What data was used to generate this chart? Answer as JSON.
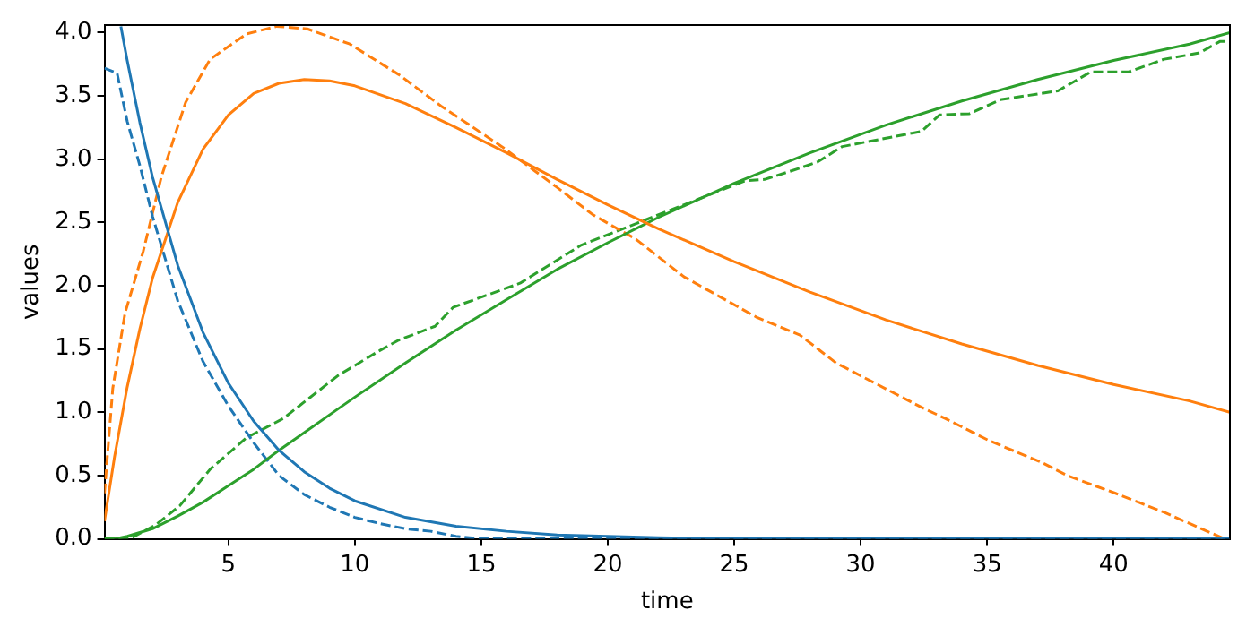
{
  "chart_data": {
    "type": "line",
    "xlabel": "time",
    "ylabel": "values",
    "xlim": [
      0.1,
      44.6
    ],
    "ylim": [
      0,
      4.06
    ],
    "xticks": [
      5,
      10,
      15,
      20,
      25,
      30,
      35,
      40
    ],
    "yticks": [
      {
        "value": 0,
        "label": "0.0"
      },
      {
        "value": 0.5,
        "label": "0.5"
      },
      {
        "value": 1,
        "label": "1.0"
      },
      {
        "value": 1.5,
        "label": "1.5"
      },
      {
        "value": 2,
        "label": "2.0"
      },
      {
        "value": 2.5,
        "label": "2.5"
      },
      {
        "value": 3,
        "label": "3.0"
      },
      {
        "value": 3.5,
        "label": "3.5"
      },
      {
        "value": 4,
        "label": "4.0"
      }
    ],
    "grid": false,
    "legend": false,
    "marker": "none",
    "series": [
      {
        "color": "#1f77b4",
        "line_style": "solid",
        "x": [
          0.75,
          1,
          1.5,
          2,
          3,
          4,
          5,
          6,
          7,
          8,
          9,
          10,
          12,
          14,
          16,
          18,
          20,
          22,
          25,
          30,
          35,
          40,
          44.6
        ],
        "values": [
          4.05,
          3.78,
          3.29,
          2.86,
          2.16,
          1.63,
          1.23,
          0.93,
          0.7,
          0.53,
          0.4,
          0.3,
          0.17,
          0.1,
          0.06,
          0.03,
          0.02,
          0.01,
          0,
          0,
          0,
          0,
          0
        ]
      },
      {
        "color": "#ff7f0e",
        "line_style": "solid",
        "x": [
          0.1,
          0.5,
          1,
          1.5,
          2,
          3,
          4,
          5,
          6,
          7,
          8,
          9,
          10,
          12,
          14,
          16,
          18,
          20,
          22,
          25,
          28,
          31,
          34,
          37,
          40,
          43,
          44.6
        ],
        "values": [
          0.14,
          0.65,
          1.2,
          1.66,
          2.06,
          2.66,
          3.08,
          3.35,
          3.52,
          3.6,
          3.63,
          3.62,
          3.58,
          3.44,
          3.25,
          3.05,
          2.84,
          2.64,
          2.45,
          2.19,
          1.95,
          1.73,
          1.54,
          1.37,
          1.22,
          1.09,
          1.0
        ]
      },
      {
        "color": "#2ca02c",
        "line_style": "solid",
        "x": [
          0.1,
          0.5,
          1,
          1.5,
          2,
          3,
          4,
          5,
          6,
          7,
          8,
          9,
          10,
          12,
          14,
          16,
          18,
          20,
          22,
          25,
          28,
          31,
          34,
          37,
          40,
          43,
          44.6
        ],
        "values": [
          0,
          0,
          0.02,
          0.05,
          0.08,
          0.18,
          0.29,
          0.42,
          0.55,
          0.7,
          0.84,
          0.98,
          1.12,
          1.39,
          1.65,
          1.89,
          2.13,
          2.34,
          2.54,
          2.81,
          3.05,
          3.27,
          3.46,
          3.63,
          3.78,
          3.91,
          4.0
        ]
      },
      {
        "color": "#1f77b4",
        "line_style": "dashed",
        "x": [
          0.1,
          0.6,
          1,
          1.5,
          2,
          3,
          4,
          5,
          6,
          7,
          8,
          9,
          10,
          11,
          12,
          13,
          14,
          15,
          20,
          30,
          44.6
        ],
        "values": [
          3.72,
          3.68,
          3.3,
          2.95,
          2.55,
          1.88,
          1.4,
          1.05,
          0.76,
          0.5,
          0.35,
          0.25,
          0.17,
          0.12,
          0.08,
          0.06,
          0.02,
          0,
          0,
          0,
          0
        ]
      },
      {
        "color": "#ff7f0e",
        "line_style": "dashed",
        "x": [
          0.1,
          0.43,
          0.91,
          1.63,
          2.35,
          3.31,
          4.28,
          5.72,
          6.92,
          8.12,
          9.8,
          11.0,
          11.73,
          13.41,
          15.81,
          17.98,
          19.42,
          21.1,
          23.02,
          25.9,
          27.6,
          29.03,
          30.47,
          32.4,
          33.36,
          35.04,
          37.2,
          38.17,
          40.08,
          42.0,
          43.93,
          44.4
        ],
        "values": [
          0.36,
          1.19,
          1.78,
          2.27,
          2.86,
          3.45,
          3.79,
          3.99,
          4.05,
          4.03,
          3.91,
          3.76,
          3.67,
          3.42,
          3.1,
          2.78,
          2.56,
          2.37,
          2.07,
          1.75,
          1.61,
          1.39,
          1.24,
          1.04,
          0.95,
          0.78,
          0.6,
          0.5,
          0.36,
          0.21,
          0.04,
          0
        ]
      },
      {
        "color": "#2ca02c",
        "line_style": "dashed",
        "x": [
          0.1,
          1.1,
          2.12,
          3.07,
          4.28,
          5.72,
          7.16,
          9.33,
          11.0,
          11.73,
          13.17,
          13.89,
          16.53,
          18.94,
          21.1,
          23.02,
          25.43,
          26.2,
          27.6,
          28.31,
          29.27,
          32.4,
          33.12,
          34.3,
          35.52,
          37.8,
          39.1,
          40.6,
          42.0,
          43.4,
          44.2,
          44.6
        ],
        "values": [
          0,
          0,
          0.11,
          0.26,
          0.55,
          0.8,
          0.95,
          1.29,
          1.49,
          1.57,
          1.68,
          1.83,
          2.02,
          2.32,
          2.49,
          2.64,
          2.83,
          2.84,
          2.93,
          2.98,
          3.1,
          3.22,
          3.35,
          3.36,
          3.47,
          3.54,
          3.69,
          3.69,
          3.79,
          3.84,
          3.93,
          3.93
        ]
      }
    ]
  }
}
